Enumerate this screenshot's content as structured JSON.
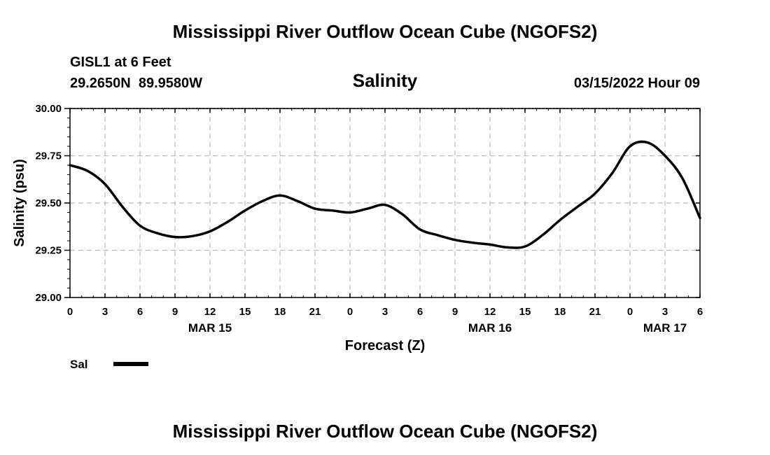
{
  "page": {
    "title": "Mississippi River Outflow Ocean Cube (NGOFS2)",
    "footer_title": "Mississippi River Outflow Ocean Cube (NGOFS2)",
    "station": "GISL1 at 6 Feet",
    "coords": "29.2650N  89.9580W",
    "date": "03/15/2022 Hour 09"
  },
  "chart_data": {
    "type": "line",
    "title": "Salinity",
    "xlabel": "Forecast (Z)",
    "ylabel": "Salinity (psu)",
    "xlim": [
      0,
      54
    ],
    "ylim": [
      29.0,
      30.0
    ],
    "grid": true,
    "x_ticks": [
      0,
      3,
      6,
      9,
      12,
      15,
      18,
      21,
      24,
      27,
      30,
      33,
      36,
      39,
      42,
      45,
      48,
      51,
      54
    ],
    "x_tick_labels": [
      "0",
      "3",
      "6",
      "9",
      "12",
      "15",
      "18",
      "21",
      "0",
      "3",
      "6",
      "9",
      "12",
      "15",
      "18",
      "21",
      "0",
      "3",
      "6"
    ],
    "y_ticks": [
      29.0,
      29.25,
      29.5,
      29.75,
      30.0
    ],
    "y_tick_labels": [
      "29.00",
      "29.25",
      "29.50",
      "29.75",
      "30.00"
    ],
    "date_labels": [
      {
        "x": 12,
        "label": "MAR 15"
      },
      {
        "x": 36,
        "label": "MAR 16"
      },
      {
        "x": 51,
        "label": "MAR 17"
      }
    ],
    "legend": {
      "position": "bottom-left",
      "entries": [
        {
          "name": "Sal",
          "color": "#000000"
        }
      ]
    },
    "series": [
      {
        "name": "Sal",
        "color": "#000000",
        "x": [
          0,
          1.5,
          3,
          4.5,
          6,
          7.5,
          9,
          10.5,
          12,
          13.5,
          15,
          16.5,
          18,
          19.5,
          21,
          22.5,
          24,
          25.5,
          27,
          28.5,
          30,
          31.5,
          33,
          34.5,
          36,
          37.5,
          39,
          40.5,
          42,
          43.5,
          45,
          46.5,
          48,
          49.5,
          51,
          52.5,
          54
        ],
        "values": [
          29.7,
          29.67,
          29.6,
          29.48,
          29.38,
          29.34,
          29.32,
          29.325,
          29.35,
          29.4,
          29.46,
          29.51,
          29.54,
          29.51,
          29.47,
          29.46,
          29.45,
          29.47,
          29.49,
          29.44,
          29.36,
          29.33,
          29.305,
          29.29,
          29.28,
          29.265,
          29.27,
          29.33,
          29.41,
          29.48,
          29.55,
          29.66,
          29.8,
          29.82,
          29.75,
          29.63,
          29.42
        ]
      }
    ]
  }
}
